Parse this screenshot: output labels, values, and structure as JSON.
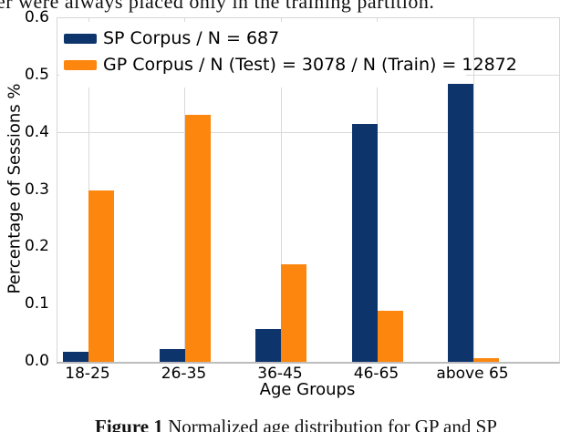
{
  "page": {
    "top_cropped_text": "er were always placed only in the training partition.",
    "caption": {
      "prefix": "Figure 1",
      "text": " Normalized age distribution for GP and SP"
    }
  },
  "chart_data": {
    "type": "bar",
    "title": "",
    "xlabel": "Age Groups",
    "ylabel": "Percentage of Sessions %",
    "categories": [
      "18-25",
      "26-35",
      "36-45",
      "46-65",
      "above 65"
    ],
    "series": [
      {
        "name": "SP Corpus / N = 687",
        "color": "#0e356b",
        "values": [
          0.017,
          0.023,
          0.057,
          0.415,
          0.485
        ]
      },
      {
        "name": "GP Corpus / N (Test) = 3078 / N (Train) = 12872",
        "color": "#fc860e",
        "values": [
          0.3,
          0.432,
          0.17,
          0.089,
          0.006
        ]
      }
    ],
    "ylim": [
      0.0,
      0.6
    ],
    "yticks": [
      0.0,
      0.1,
      0.2,
      0.3,
      0.4,
      0.5,
      0.6
    ],
    "grid": {
      "vertical": "per-category-tick",
      "horizontal_at": [
        0.4,
        0.5
      ]
    },
    "legend_position": "upper-left",
    "colors": {
      "sp_blue": "#0e356b",
      "gp_orange": "#fc860e",
      "gridline": "#d9d9d9",
      "axis_border": "#bdbdbd"
    }
  }
}
